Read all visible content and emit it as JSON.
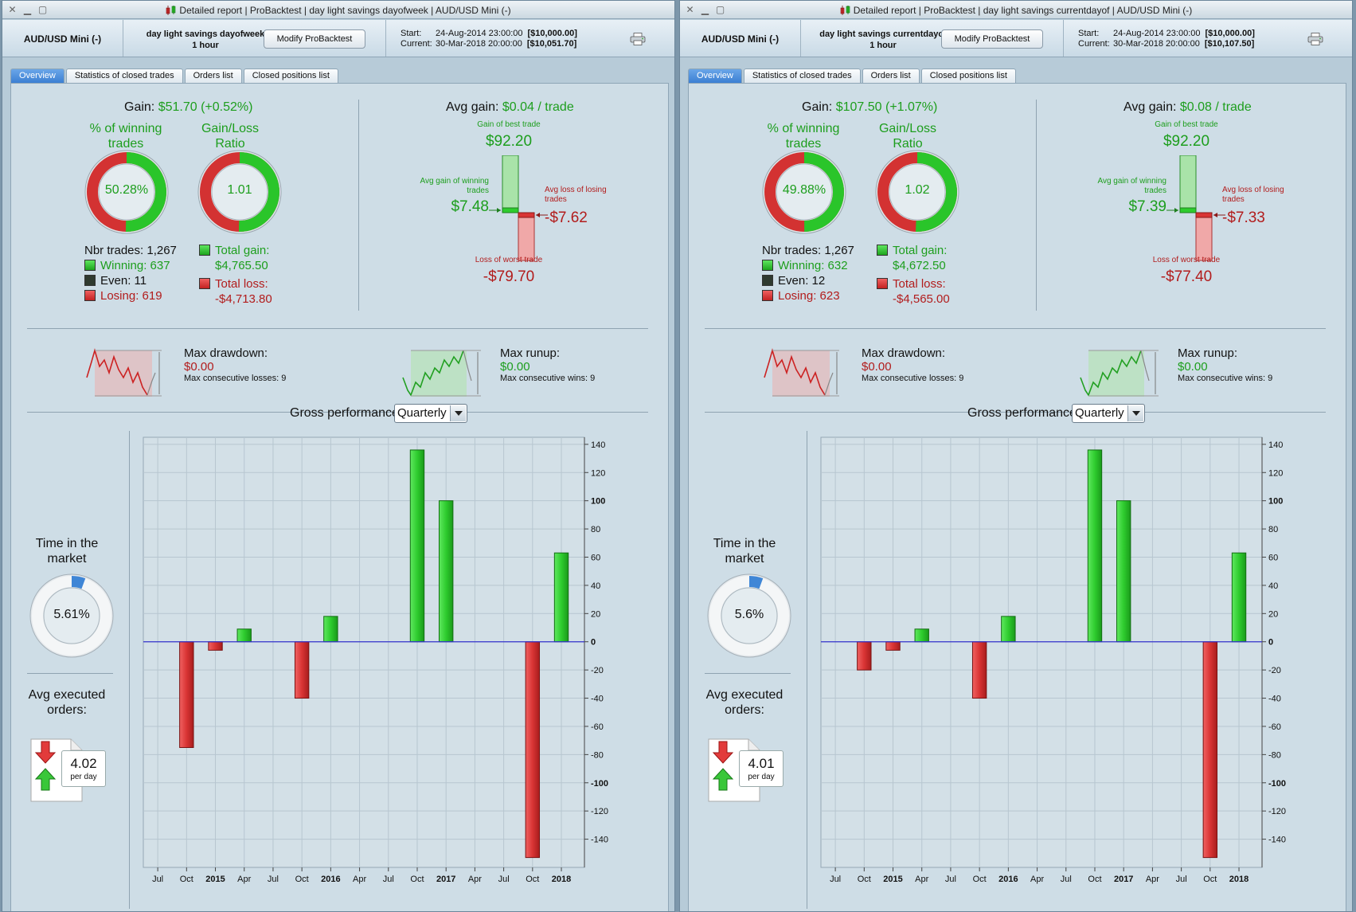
{
  "colors": {
    "gain": "#1d9e1d",
    "loss": "#b21c1c",
    "bar_pos": "#2ecc2e",
    "bar_neg": "#d93434",
    "zero_line": "#3333cc"
  },
  "icons": {
    "close": "close-icon",
    "minimize": "minimize-icon",
    "maximize": "maximize-icon",
    "print": "printer-icon",
    "dropdown": "chevron-down-icon"
  },
  "left": {
    "window_title": "Detailed report | ProBacktest | day light savings dayofweek | AUD/USD Mini (-)",
    "symbol": "AUD/USD Mini (-)",
    "strategy_name": "day light savings dayofweek",
    "timeframe": "1 hour",
    "modify_label": "Modify ProBacktest",
    "start_label": "Start:",
    "start_date": "24-Aug-2014 23:00:00",
    "start_capital": "[$10,000.00]",
    "current_label": "Current:",
    "current_date": "30-Mar-2018 20:00:00",
    "current_capital": "[$10,051.70]",
    "tabs": [
      "Overview",
      "Statistics of closed trades",
      "Orders list",
      "Closed positions list"
    ],
    "gain_label": "Gain:",
    "gain_value": "$51.70 (+0.52%)",
    "winning_title": "% of winning trades",
    "winning_pct": "50.28%",
    "winning_fraction": 0.5028,
    "ratio_title": "Gain/Loss Ratio",
    "ratio_value": "1.01",
    "ratio_fraction": 0.5027,
    "nbr_trades": "Nbr trades: 1,267",
    "winning": "Winning: 637",
    "even": "Even: 11",
    "losing": "Losing: 619",
    "total_gain_label": "Total gain:",
    "total_gain": "$4,765.50",
    "total_loss_label": "Total loss:",
    "total_loss": "-$4,713.80",
    "avg_gain_label": "Avg gain:",
    "avg_gain_value": "$0.04 / trade",
    "best_trade_label": "Gain of best trade",
    "best_trade": "$92.20",
    "avg_win_label": "Avg gain of winning trades",
    "avg_win": "$7.48",
    "avg_loss_label": "Avg loss of losing trades",
    "avg_loss": "-$7.62",
    "worst_trade_label": "Loss of worst trade",
    "worst_trade": "-$79.70",
    "max_dd_label": "Max drawdown:",
    "max_dd": "$0.00",
    "max_losses": "Max consecutive losses: 9",
    "max_ru_label": "Max runup:",
    "max_ru": "$0.00",
    "max_wins": "Max consecutive wins: 9",
    "time_title": "Time in the market",
    "time_pct": "5.61%",
    "time_fraction": 0.0561,
    "avg_exec_title": "Avg executed orders:",
    "avg_exec_value": "4.02",
    "per_day": "per day",
    "gp_title": "Gross performance",
    "gp_select": "Quarterly"
  },
  "right": {
    "window_title": "Detailed report | ProBacktest | day light savings currentdayof | AUD/USD Mini (-)",
    "symbol": "AUD/USD Mini (-)",
    "strategy_name": "day light savings currentdayof",
    "timeframe": "1 hour",
    "modify_label": "Modify ProBacktest",
    "start_label": "Start:",
    "start_date": "24-Aug-2014 23:00:00",
    "start_capital": "[$10,000.00]",
    "current_label": "Current:",
    "current_date": "30-Mar-2018 20:00:00",
    "current_capital": "[$10,107.50]",
    "tabs": [
      "Overview",
      "Statistics of closed trades",
      "Orders list",
      "Closed positions list"
    ],
    "gain_label": "Gain:",
    "gain_value": "$107.50 (+1.07%)",
    "winning_title": "% of winning trades",
    "winning_pct": "49.88%",
    "winning_fraction": 0.4988,
    "ratio_title": "Gain/Loss Ratio",
    "ratio_value": "1.02",
    "ratio_fraction": 0.5058,
    "nbr_trades": "Nbr trades: 1,267",
    "winning": "Winning: 632",
    "even": "Even: 12",
    "losing": "Losing: 623",
    "total_gain_label": "Total gain:",
    "total_gain": "$4,672.50",
    "total_loss_label": "Total loss:",
    "total_loss": "-$4,565.00",
    "avg_gain_label": "Avg gain:",
    "avg_gain_value": "$0.08 / trade",
    "best_trade_label": "Gain of best trade",
    "best_trade": "$92.20",
    "avg_win_label": "Avg gain of winning trades",
    "avg_win": "$7.39",
    "avg_loss_label": "Avg loss of losing trades",
    "avg_loss": "-$7.33",
    "worst_trade_label": "Loss of worst trade",
    "worst_trade": "-$77.40",
    "max_dd_label": "Max drawdown:",
    "max_dd": "$0.00",
    "max_losses": "Max consecutive losses: 9",
    "max_ru_label": "Max runup:",
    "max_ru": "$0.00",
    "max_wins": "Max consecutive wins: 9",
    "time_title": "Time in the market",
    "time_pct": "5.6%",
    "time_fraction": 0.056,
    "avg_exec_title": "Avg executed orders:",
    "avg_exec_value": "4.01",
    "per_day": "per day",
    "gp_title": "Gross performance",
    "gp_select": "Quarterly"
  },
  "chart_data": [
    {
      "type": "bar",
      "title": "Gross performance",
      "categories": [
        "Jul",
        "Oct",
        "2015",
        "Apr",
        "Jul",
        "Oct",
        "2016",
        "Apr",
        "Jul",
        "Oct",
        "2017",
        "Apr",
        "Jul",
        "Oct",
        "2018"
      ],
      "values": [
        0,
        -75,
        -6,
        9,
        0,
        -40,
        18,
        0,
        0,
        136,
        100,
        0,
        0,
        -153,
        63
      ],
      "bold_ticks": [
        "2015",
        "2016",
        "2017",
        "2018"
      ],
      "ylim": [
        -160,
        145
      ],
      "yticks": [
        140,
        120,
        100,
        80,
        60,
        40,
        20,
        0,
        -20,
        -40,
        -60,
        -80,
        -100,
        -120,
        -140
      ],
      "bold_yticks": [
        100,
        0,
        -100
      ],
      "grid": true
    },
    {
      "type": "bar",
      "title": "Gross performance",
      "categories": [
        "Jul",
        "Oct",
        "2015",
        "Apr",
        "Jul",
        "Oct",
        "2016",
        "Apr",
        "Jul",
        "Oct",
        "2017",
        "Apr",
        "Jul",
        "Oct",
        "2018"
      ],
      "values": [
        0,
        -20,
        -6,
        9,
        0,
        -40,
        18,
        0,
        0,
        136,
        100,
        0,
        0,
        -153,
        63
      ],
      "bold_ticks": [
        "2015",
        "2016",
        "2017",
        "2018"
      ],
      "ylim": [
        -160,
        145
      ],
      "yticks": [
        140,
        120,
        100,
        80,
        60,
        40,
        20,
        0,
        -20,
        -40,
        -60,
        -80,
        -100,
        -120,
        -140
      ],
      "bold_yticks": [
        100,
        0,
        -100
      ],
      "grid": true
    }
  ]
}
